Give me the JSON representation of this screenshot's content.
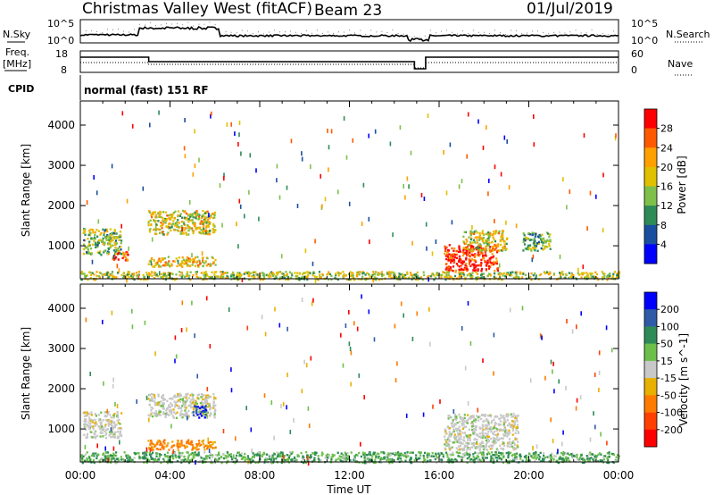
{
  "header": {
    "station": "Christmas Valley West (fitACF)",
    "beam": "Beam 23",
    "date": "01/Jul/2019"
  },
  "noise_panel": {
    "left_label": "N.Sky",
    "right_label": "N.Search",
    "left_ticks": [
      "10^5",
      "10^0"
    ],
    "right_ticks": [
      "10^5",
      "10^0"
    ]
  },
  "freq_panel": {
    "left_label_line1": "Freq.",
    "left_label_line2": "[MHz]",
    "right_label": "Nave",
    "left_ticks": [
      "18",
      "8"
    ],
    "right_ticks": [
      "60",
      "0"
    ]
  },
  "cpid": {
    "label": "CPID",
    "value": "normal (fast) 151 RF"
  },
  "time_axis": {
    "label": "Time UT",
    "ticks": [
      "00:00",
      "04:00",
      "08:00",
      "12:00",
      "16:00",
      "20:00",
      "00:00"
    ]
  },
  "chart_data": [
    {
      "type": "heatmap",
      "panel": "power",
      "ylabel": "Slant Range [km]",
      "xlabel": "",
      "y_ticks": [
        1000,
        2000,
        3000,
        4000
      ],
      "ylim": [
        180,
        4600
      ],
      "xlim_hours": [
        0,
        24
      ],
      "colorbar_label": "Power [dB]",
      "colorbar_ticks": [
        "28",
        "24",
        "20",
        "16",
        "12",
        "8",
        "4"
      ],
      "colorbar_colors": [
        "#ff0000",
        "#ff5a00",
        "#ffa000",
        "#e0c000",
        "#7fc04a",
        "#2e8b57",
        "#1a4fa0",
        "#0000ff"
      ],
      "echo_regions": [
        {
          "t0": 0.1,
          "t1": 1.8,
          "r0": 800,
          "r1": 1450,
          "level": 0.45
        },
        {
          "t0": 1.4,
          "t1": 2.1,
          "r0": 650,
          "r1": 900,
          "level": 0.85
        },
        {
          "t0": 3.0,
          "t1": 6.0,
          "r0": 1300,
          "r1": 1900,
          "level": 0.55
        },
        {
          "t0": 3.0,
          "t1": 6.0,
          "r0": 500,
          "r1": 750,
          "level": 0.6
        },
        {
          "t0": 16.2,
          "t1": 18.6,
          "r0": 400,
          "r1": 1050,
          "level": 0.92
        },
        {
          "t0": 17.0,
          "t1": 19.0,
          "r0": 900,
          "r1": 1400,
          "level": 0.55
        },
        {
          "t0": 19.7,
          "t1": 21.0,
          "r0": 900,
          "r1": 1350,
          "level": 0.4
        },
        {
          "t0": 0.0,
          "t1": 24.0,
          "r0": 180,
          "r1": 380,
          "level": 0.5
        }
      ]
    },
    {
      "type": "heatmap",
      "panel": "velocity",
      "ylabel": "Slant Range [km]",
      "xlabel": "Time UT",
      "y_ticks": [
        1000,
        2000,
        3000,
        4000
      ],
      "ylim": [
        180,
        4600
      ],
      "xlim_hours": [
        0,
        24
      ],
      "colorbar_label": "Velocity [m s^-1]",
      "colorbar_ticks": [
        "200",
        "100",
        "50",
        "15",
        "-15",
        "-50",
        "-100",
        "-200"
      ],
      "colorbar_colors": [
        "#0000ff",
        "#2e5aa8",
        "#2e8b57",
        "#6cc04a",
        "#c8c8c8",
        "#e8b000",
        "#ff7a00",
        "#ff4000",
        "#ff0000"
      ],
      "echo_regions": [
        {
          "t0": 0.1,
          "t1": 1.8,
          "r0": 800,
          "r1": 1450,
          "velocity": 0
        },
        {
          "t0": 3.0,
          "t1": 6.0,
          "r0": 1300,
          "r1": 1900,
          "velocity": 0
        },
        {
          "t0": 3.0,
          "t1": 6.0,
          "r0": 500,
          "r1": 750,
          "velocity": -40
        },
        {
          "t0": 5.0,
          "t1": 5.6,
          "r0": 1300,
          "r1": 1600,
          "velocity": 150
        },
        {
          "t0": 16.2,
          "t1": 19.5,
          "r0": 500,
          "r1": 1400,
          "velocity": 0
        },
        {
          "t0": 0.0,
          "t1": 24.0,
          "r0": 180,
          "r1": 450,
          "velocity": 30
        }
      ]
    }
  ]
}
